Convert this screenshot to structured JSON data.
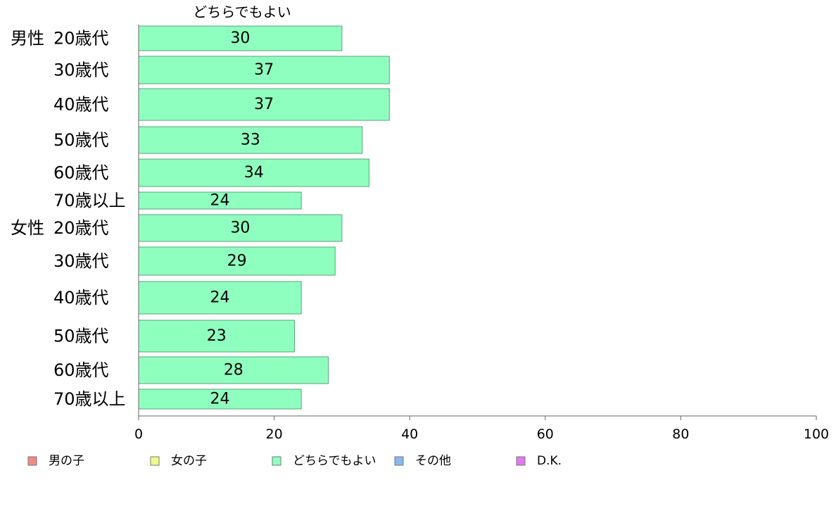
{
  "chart_data": {
    "type": "bar",
    "orientation": "horizontal",
    "title": "どちらでもよい",
    "xlim": [
      0,
      100
    ],
    "ticks": [
      0,
      20,
      40,
      60,
      80,
      100
    ],
    "groups": [
      {
        "label": "男性",
        "categories": [
          "20歳代",
          "30歳代",
          "40歳代",
          "50歳代",
          "60歳代",
          "70歳以上"
        ],
        "values": [
          30,
          37,
          37,
          33,
          34,
          24
        ]
      },
      {
        "label": "女性",
        "categories": [
          "20歳代",
          "30歳代",
          "40歳代",
          "50歳代",
          "60歳代",
          "70歳以上"
        ],
        "values": [
          30,
          29,
          24,
          23,
          28,
          24
        ]
      }
    ],
    "bar_color": "#8fffbf",
    "legend": {
      "placement": "bottom",
      "items": [
        {
          "label": "男の子",
          "color": "#f28b82"
        },
        {
          "label": "女の子",
          "color": "#eeff88"
        },
        {
          "label": "どちらでもよい",
          "color": "#8fffbf"
        },
        {
          "label": "その他",
          "color": "#88b8f0"
        },
        {
          "label": "D.K.",
          "color": "#e07af0"
        }
      ]
    }
  }
}
